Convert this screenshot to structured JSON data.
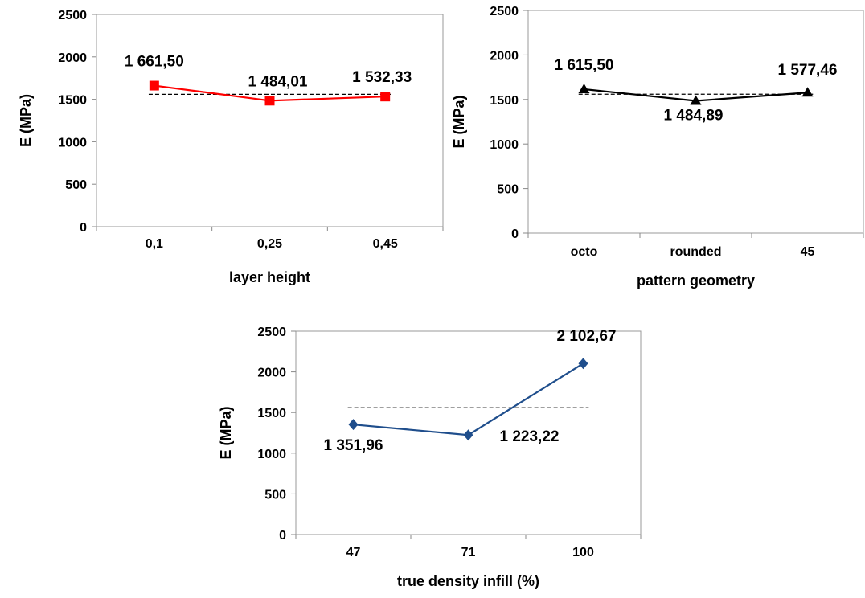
{
  "chart_data": [
    {
      "type": "line",
      "categories": [
        "0,1",
        "0,25",
        "0,45"
      ],
      "values": [
        1661.5,
        1484.01,
        1532.33
      ],
      "data_labels": [
        "1 661,50",
        "1 484,01",
        "1 532,33"
      ],
      "mean_line": 1559,
      "xlabel": "layer height",
      "ylabel": "E (MPa)",
      "ylim": [
        0,
        2500
      ],
      "yticks": [
        "0",
        "500",
        "1000",
        "1500",
        "2000",
        "2500"
      ],
      "color": "#ff0000",
      "marker": "square",
      "grid": false,
      "legend": "none"
    },
    {
      "type": "line",
      "categories": [
        "octo",
        "rounded",
        "45"
      ],
      "values": [
        1615.5,
        1484.89,
        1577.46
      ],
      "data_labels": [
        "1 615,50",
        "1 484,89",
        "1 577,46"
      ],
      "mean_line": 1559,
      "xlabel": "pattern geometry",
      "ylabel": "E (MPa)",
      "ylim": [
        0,
        2500
      ],
      "yticks": [
        "0",
        "500",
        "1000",
        "1500",
        "2000",
        "2500"
      ],
      "color": "#000000",
      "marker": "triangle",
      "grid": false,
      "legend": "none"
    },
    {
      "type": "line",
      "categories": [
        "47",
        "71",
        "100"
      ],
      "values": [
        1351.96,
        1223.22,
        2102.67
      ],
      "data_labels": [
        "1 351,96",
        "1 223,22",
        "2 102,67"
      ],
      "mean_line": 1559,
      "xlabel": "true density infill (%)",
      "ylabel": "E (MPa)",
      "ylim": [
        0,
        2500
      ],
      "yticks": [
        "0",
        "500",
        "1000",
        "1500",
        "2000",
        "2500"
      ],
      "color": "#1f4e8c",
      "marker": "diamond",
      "grid": false,
      "legend": "none"
    }
  ]
}
